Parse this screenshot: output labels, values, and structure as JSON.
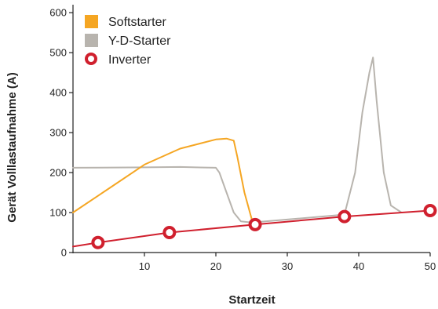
{
  "chart_data": {
    "type": "line",
    "xlabel": "Startzeit",
    "ylabel": "Gerät Volllastaufnahme (A)",
    "xlim": [
      0,
      50
    ],
    "ylim": [
      0,
      620
    ],
    "x_ticks": [
      10,
      20,
      30,
      40,
      50
    ],
    "y_ticks": [
      0,
      100,
      200,
      300,
      400,
      500,
      600
    ],
    "grid": false,
    "legend_position": "top-left",
    "series": [
      {
        "name": "Softstarter",
        "color": "#F5A623",
        "marker": "square",
        "x": [
          0,
          5,
          10,
          15,
          20,
          21.5,
          22.5,
          23,
          24,
          25,
          25.5
        ],
        "y": [
          100,
          160,
          220,
          260,
          283,
          285,
          280,
          240,
          150,
          85,
          75
        ]
      },
      {
        "name": "Y-D-Starter",
        "color": "#B8B4AE",
        "marker": "square",
        "x": [
          0,
          10,
          15,
          20,
          20.5,
          21.5,
          22.5,
          23.5,
          25,
          38,
          39.5,
          40.5,
          41.5,
          42,
          42.5,
          43.5,
          44.5,
          46
        ],
        "y": [
          212,
          213,
          214,
          212,
          200,
          150,
          100,
          78,
          75,
          95,
          200,
          350,
          450,
          488,
          380,
          200,
          118,
          100
        ]
      },
      {
        "name": "Inverter",
        "color": "#D0202E",
        "marker": "circle",
        "x": [
          0,
          3.5,
          13.5,
          25.5,
          38,
          50
        ],
        "y": [
          15,
          25,
          50,
          70,
          90,
          105
        ],
        "marker_x": [
          3.5,
          13.5,
          25.5,
          38,
          50
        ],
        "marker_y": [
          25,
          50,
          70,
          90,
          105
        ]
      }
    ]
  }
}
